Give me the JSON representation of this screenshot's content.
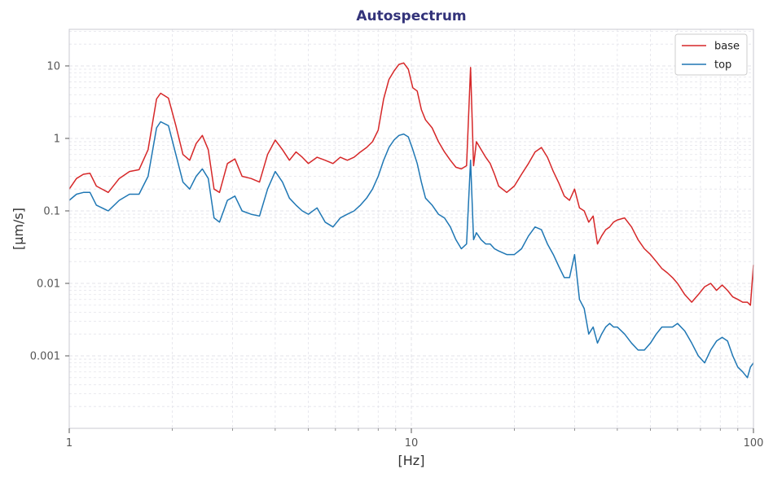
{
  "chart_data": {
    "type": "line",
    "title": "Autospectrum",
    "xlabel": "[Hz]",
    "ylabel": "[μm/s]",
    "xscale": "log",
    "yscale": "log",
    "xlim": [
      1,
      100
    ],
    "ylim": [
      0.0001,
      32
    ],
    "x_ticks": [
      {
        "value": 1,
        "label": "1"
      },
      {
        "value": 10,
        "label": "10"
      },
      {
        "value": 100,
        "label": "100"
      }
    ],
    "y_ticks": [
      {
        "value": 10,
        "label": "10"
      },
      {
        "value": 1,
        "label": "1"
      },
      {
        "value": 0.1,
        "label": "0.1"
      },
      {
        "value": 0.01,
        "label": "0.01"
      },
      {
        "value": 0.001,
        "label": "0.001"
      }
    ],
    "grid": true,
    "legend": {
      "position": "top-right"
    },
    "colors": {
      "title": "#33337a",
      "base": "#d62728",
      "top": "#1f77b4",
      "grid": "#e3e3ea",
      "axis": "#c8c8d0"
    },
    "series": [
      {
        "name": "base",
        "color": "#d62728",
        "x": [
          1.0,
          1.05,
          1.1,
          1.15,
          1.2,
          1.3,
          1.4,
          1.5,
          1.6,
          1.7,
          1.8,
          1.85,
          1.95,
          2.05,
          2.15,
          2.25,
          2.35,
          2.45,
          2.55,
          2.65,
          2.75,
          2.9,
          3.05,
          3.2,
          3.4,
          3.6,
          3.8,
          4.0,
          4.2,
          4.4,
          4.6,
          4.8,
          5.0,
          5.3,
          5.6,
          5.9,
          6.2,
          6.5,
          6.8,
          7.1,
          7.4,
          7.7,
          8.0,
          8.3,
          8.6,
          8.9,
          9.2,
          9.5,
          9.8,
          10.1,
          10.4,
          10.7,
          11.0,
          11.5,
          12.0,
          12.5,
          13.0,
          13.5,
          14.0,
          14.5,
          14.9,
          15.2,
          15.5,
          16.0,
          16.5,
          17.0,
          17.5,
          18.0,
          19.0,
          20.0,
          21.0,
          22.0,
          23.0,
          24.0,
          25.0,
          26.0,
          27.0,
          28.0,
          29.0,
          30.0,
          31.0,
          32.0,
          33.0,
          34.0,
          35.0,
          36.0,
          37.0,
          38.0,
          39.0,
          40.0,
          42.0,
          44.0,
          46.0,
          48.0,
          50.0,
          52.0,
          54.0,
          56.0,
          58.0,
          60.0,
          63.0,
          66.0,
          69.0,
          72.0,
          75.0,
          78.0,
          81.0,
          84.0,
          87.0,
          90.0,
          93.0,
          96.0,
          98.0,
          100.0
        ],
        "values": [
          0.2,
          0.28,
          0.32,
          0.33,
          0.22,
          0.18,
          0.28,
          0.35,
          0.37,
          0.7,
          3.5,
          4.2,
          3.6,
          1.5,
          0.6,
          0.5,
          0.85,
          1.1,
          0.7,
          0.2,
          0.18,
          0.45,
          0.52,
          0.3,
          0.28,
          0.25,
          0.6,
          0.95,
          0.7,
          0.5,
          0.65,
          0.55,
          0.45,
          0.55,
          0.5,
          0.45,
          0.55,
          0.5,
          0.55,
          0.65,
          0.75,
          0.9,
          1.3,
          3.5,
          6.5,
          8.5,
          10.5,
          11.0,
          9.0,
          5.0,
          4.5,
          2.5,
          1.8,
          1.4,
          0.9,
          0.65,
          0.5,
          0.4,
          0.38,
          0.42,
          9.5,
          0.42,
          0.9,
          0.7,
          0.55,
          0.45,
          0.32,
          0.22,
          0.18,
          0.22,
          0.32,
          0.45,
          0.65,
          0.75,
          0.55,
          0.35,
          0.24,
          0.16,
          0.14,
          0.2,
          0.11,
          0.1,
          0.07,
          0.085,
          0.035,
          0.045,
          0.055,
          0.06,
          0.07,
          0.075,
          0.08,
          0.06,
          0.04,
          0.03,
          0.025,
          0.02,
          0.016,
          0.014,
          0.012,
          0.01,
          0.007,
          0.0055,
          0.007,
          0.009,
          0.01,
          0.008,
          0.0095,
          0.008,
          0.0065,
          0.006,
          0.0055,
          0.0055,
          0.005,
          0.018
        ]
      },
      {
        "name": "top",
        "color": "#1f77b4",
        "x": [
          1.0,
          1.05,
          1.1,
          1.15,
          1.2,
          1.3,
          1.4,
          1.5,
          1.6,
          1.7,
          1.8,
          1.85,
          1.95,
          2.05,
          2.15,
          2.25,
          2.35,
          2.45,
          2.55,
          2.65,
          2.75,
          2.9,
          3.05,
          3.2,
          3.4,
          3.6,
          3.8,
          4.0,
          4.2,
          4.4,
          4.6,
          4.8,
          5.0,
          5.3,
          5.6,
          5.9,
          6.2,
          6.5,
          6.8,
          7.1,
          7.4,
          7.7,
          8.0,
          8.3,
          8.6,
          8.9,
          9.2,
          9.5,
          9.8,
          10.1,
          10.4,
          10.7,
          11.0,
          11.5,
          12.0,
          12.5,
          13.0,
          13.5,
          14.0,
          14.5,
          14.9,
          15.2,
          15.5,
          16.0,
          16.5,
          17.0,
          17.5,
          18.0,
          19.0,
          20.0,
          21.0,
          22.0,
          23.0,
          24.0,
          25.0,
          26.0,
          27.0,
          28.0,
          29.0,
          30.0,
          31.0,
          32.0,
          33.0,
          34.0,
          35.0,
          36.0,
          37.0,
          38.0,
          39.0,
          40.0,
          42.0,
          44.0,
          46.0,
          48.0,
          50.0,
          52.0,
          54.0,
          56.0,
          58.0,
          60.0,
          63.0,
          66.0,
          69.0,
          72.0,
          75.0,
          78.0,
          81.0,
          84.0,
          87.0,
          90.0,
          93.0,
          96.0,
          98.0,
          100.0
        ],
        "values": [
          0.14,
          0.17,
          0.18,
          0.18,
          0.12,
          0.1,
          0.14,
          0.17,
          0.17,
          0.3,
          1.4,
          1.7,
          1.5,
          0.6,
          0.25,
          0.2,
          0.3,
          0.38,
          0.28,
          0.08,
          0.07,
          0.14,
          0.16,
          0.1,
          0.09,
          0.085,
          0.2,
          0.35,
          0.25,
          0.15,
          0.12,
          0.1,
          0.09,
          0.11,
          0.07,
          0.06,
          0.08,
          0.09,
          0.1,
          0.12,
          0.15,
          0.2,
          0.3,
          0.5,
          0.75,
          0.95,
          1.1,
          1.15,
          1.05,
          0.7,
          0.45,
          0.25,
          0.15,
          0.12,
          0.09,
          0.08,
          0.06,
          0.04,
          0.03,
          0.035,
          0.5,
          0.04,
          0.05,
          0.04,
          0.035,
          0.035,
          0.03,
          0.028,
          0.025,
          0.025,
          0.03,
          0.045,
          0.06,
          0.055,
          0.035,
          0.025,
          0.017,
          0.012,
          0.012,
          0.025,
          0.006,
          0.0045,
          0.002,
          0.0025,
          0.0015,
          0.002,
          0.0025,
          0.0028,
          0.0025,
          0.0025,
          0.002,
          0.0015,
          0.0012,
          0.0012,
          0.0015,
          0.002,
          0.0025,
          0.0025,
          0.0025,
          0.0028,
          0.0022,
          0.0015,
          0.001,
          0.0008,
          0.0012,
          0.0016,
          0.0018,
          0.0016,
          0.001,
          0.0007,
          0.0006,
          0.0005,
          0.0007,
          0.0008
        ]
      }
    ]
  }
}
